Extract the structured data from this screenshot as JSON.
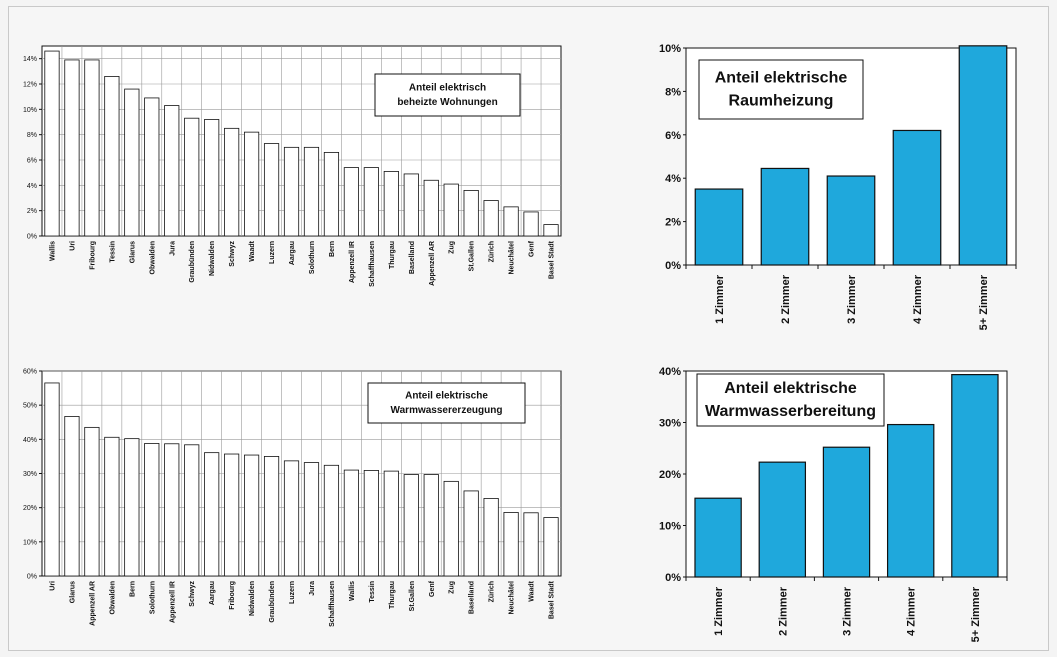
{
  "chart_data": [
    {
      "id": "c1",
      "type": "bar",
      "title_lines": [
        "Anteil elektrisch",
        "beheizte Wohnungen"
      ],
      "categories": [
        "Wallis",
        "Uri",
        "Fribourg",
        "Tessin",
        "Glarus",
        "Obwalden",
        "Jura",
        "Graubünden",
        "Nidwalden",
        "Schwyz",
        "Waadt",
        "Luzern",
        "Aargau",
        "Solothurn",
        "Bern",
        "Appenzell IR",
        "Schaffhausen",
        "Thurgau",
        "Baselland",
        "Appenzell AR",
        "Zug",
        "St.Gallen",
        "Zürich",
        "Neuchâtel",
        "Genf",
        "Basel Stadt"
      ],
      "values": [
        14.6,
        13.9,
        13.9,
        12.6,
        11.6,
        10.9,
        10.3,
        9.3,
        9.2,
        8.5,
        8.2,
        7.3,
        7.0,
        7.0,
        6.6,
        5.4,
        5.4,
        5.1,
        4.9,
        4.4,
        4.1,
        3.6,
        2.8,
        2.3,
        1.9,
        0.9
      ],
      "ylim": [
        0,
        15
      ],
      "yticks": [
        "0%",
        "2%",
        "4%",
        "6%",
        "8%",
        "10%",
        "12%",
        "14%"
      ],
      "ytick_values": [
        0,
        2,
        4,
        6,
        8,
        10,
        12,
        14
      ],
      "bar_color": "#ffffff",
      "grid": true
    },
    {
      "id": "c2",
      "type": "bar",
      "title_lines": [
        "Anteil elektrische",
        "Raumheizung"
      ],
      "categories": [
        "1 Zimmer",
        "2 Zimmer",
        "3 Zimmer",
        "4 Zimmer",
        "5+ Zimmer"
      ],
      "values": [
        3.5,
        4.45,
        4.1,
        6.2,
        10.1
      ],
      "ylim": [
        0,
        10
      ],
      "yticks": [
        "0%",
        "2%",
        "4%",
        "6%",
        "8%",
        "10%"
      ],
      "ytick_values": [
        0,
        2,
        4,
        6,
        8,
        10
      ],
      "bar_color": "#1fa8dc",
      "grid": false
    },
    {
      "id": "c3",
      "type": "bar",
      "title_lines": [
        "Anteil elektrische",
        "Warmwassererzeugung"
      ],
      "categories": [
        "Uri",
        "Glarus",
        "Appenzell AR",
        "Obwalden",
        "Bern",
        "Solothurn",
        "Appenzell IR",
        "Schwyz",
        "Aargau",
        "Fribourg",
        "Nidwalden",
        "Graubünden",
        "Luzern",
        "Jura",
        "Schaffhausen",
        "Wallis",
        "Tessin",
        "Thurgau",
        "St.Gallen",
        "Genf",
        "Zug",
        "Baselland",
        "Zürich",
        "Neuchâtel",
        "Waadt",
        "Basel Stadt"
      ],
      "values": [
        56.5,
        46.7,
        43.5,
        40.6,
        40.2,
        38.8,
        38.7,
        38.4,
        36.1,
        35.7,
        35.4,
        35.0,
        33.7,
        33.2,
        32.4,
        31.0,
        30.9,
        30.7,
        29.7,
        29.7,
        27.7,
        24.9,
        22.7,
        18.6,
        18.5,
        17.1
      ],
      "ylim": [
        0,
        60
      ],
      "yticks": [
        "0%",
        "10%",
        "20%",
        "30%",
        "40%",
        "50%",
        "60%"
      ],
      "ytick_values": [
        0,
        10,
        20,
        30,
        40,
        50,
        60
      ],
      "bar_color": "#ffffff",
      "grid": true
    },
    {
      "id": "c4",
      "type": "bar",
      "title_lines": [
        "Anteil elektrische",
        "Warmwasserbereitung"
      ],
      "categories": [
        "1 Zimmer",
        "2 Zimmer",
        "3 Zimmer",
        "4 Zimmer",
        "5+ Zimmer"
      ],
      "values": [
        15.3,
        22.3,
        25.2,
        29.6,
        39.3
      ],
      "ylim": [
        0,
        40
      ],
      "yticks": [
        "0%",
        "10%",
        "20%",
        "30%",
        "40%"
      ],
      "ytick_values": [
        0,
        10,
        20,
        30,
        40
      ],
      "bar_color": "#1fa8dc",
      "grid": false
    }
  ]
}
